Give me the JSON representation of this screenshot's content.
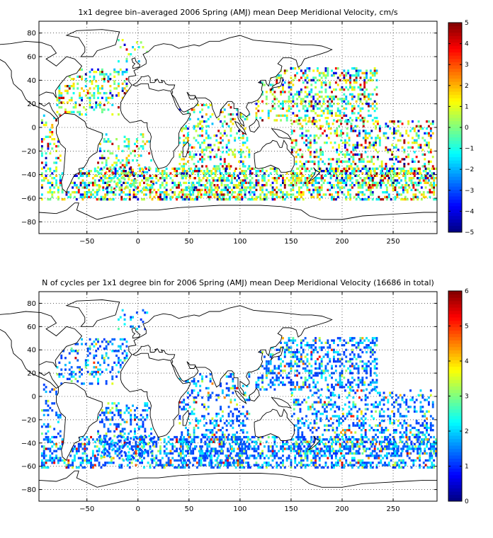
{
  "chart_data": [
    {
      "type": "heatmap",
      "title": "1x1 degree bin–averaged 2006 Spring (AMJ) mean Deep Meridional Velocity, cm/s",
      "xlabel": "",
      "ylabel": "",
      "xlim": [
        -97,
        293
      ],
      "ylim": [
        -90,
        90
      ],
      "x_ticks": [
        -50,
        0,
        50,
        100,
        150,
        200,
        250
      ],
      "x_tick_labels": [
        "−50",
        "0",
        "50",
        "100",
        "150",
        "200",
        "250"
      ],
      "y_ticks": [
        80,
        60,
        40,
        20,
        0,
        -20,
        -40,
        -60,
        -80
      ],
      "y_tick_labels": [
        "80",
        "60",
        "40",
        "20",
        "0",
        "−20",
        "−40",
        "−60",
        "−80"
      ],
      "grid": true,
      "colormap": "jet",
      "colorbar": {
        "range": [
          -5,
          5
        ],
        "ticks": [
          5,
          4,
          3,
          2,
          1,
          0,
          -1,
          -2,
          -3,
          -4,
          -5
        ],
        "tick_labels": [
          "5",
          "4",
          "3",
          "2",
          "1",
          "0",
          "−1",
          "−2",
          "−3",
          "−4",
          "−5"
        ]
      },
      "value_distribution": "diverging, mostly -2 to 2 with sparse extremes near ±5",
      "sampled_regions": [
        {
          "lon": [
            -80,
            -10
          ],
          "lat": [
            10,
            50
          ],
          "density": 0.3
        },
        {
          "lon": [
            -95,
            -75
          ],
          "lat": [
            -35,
            10
          ],
          "density": 0.25
        },
        {
          "lon": [
            -40,
            15
          ],
          "lat": [
            -55,
            -5
          ],
          "density": 0.28
        },
        {
          "lon": [
            40,
            110
          ],
          "lat": [
            -60,
            20
          ],
          "density": 0.3
        },
        {
          "lon": [
            115,
            235
          ],
          "lat": [
            5,
            50
          ],
          "density": 0.4
        },
        {
          "lon": [
            150,
            290
          ],
          "lat": [
            -50,
            5
          ],
          "density": 0.32
        },
        {
          "lon": [
            -95,
            293
          ],
          "lat": [
            -62,
            -35
          ],
          "density": 0.45
        },
        {
          "lon": [
            -20,
            10
          ],
          "lat": [
            55,
            75
          ],
          "density": 0.15
        }
      ]
    },
    {
      "type": "heatmap",
      "title": "N of cycles per 1x1 degree bin for 2006 Spring (AMJ) mean Deep Meridional Velocity (16686 in total)",
      "xlabel": "",
      "ylabel": "",
      "xlim": [
        -97,
        293
      ],
      "ylim": [
        -90,
        90
      ],
      "x_ticks": [
        -50,
        0,
        50,
        100,
        150,
        200,
        250
      ],
      "x_tick_labels": [
        "−50",
        "0",
        "50",
        "100",
        "150",
        "200",
        "250"
      ],
      "y_ticks": [
        80,
        60,
        40,
        20,
        0,
        -20,
        -40,
        -60,
        -80
      ],
      "y_tick_labels": [
        "80",
        "60",
        "40",
        "20",
        "0",
        "−20",
        "−40",
        "−60",
        "−80"
      ],
      "grid": true,
      "colormap": "jet",
      "colorbar": {
        "range": [
          0,
          6
        ],
        "ticks": [
          6,
          5,
          4,
          3,
          2,
          1,
          0
        ],
        "tick_labels": [
          "6",
          "5",
          "4",
          "3",
          "2",
          "1",
          "0"
        ]
      },
      "total_cycles": 16686,
      "value_distribution": "mostly 1-2 cycles per bin, few bins up to 6",
      "sampled_regions": [
        {
          "lon": [
            -80,
            -10
          ],
          "lat": [
            10,
            50
          ],
          "density": 0.3
        },
        {
          "lon": [
            -95,
            -75
          ],
          "lat": [
            -35,
            10
          ],
          "density": 0.25
        },
        {
          "lon": [
            -40,
            15
          ],
          "lat": [
            -55,
            -5
          ],
          "density": 0.28
        },
        {
          "lon": [
            40,
            110
          ],
          "lat": [
            -60,
            20
          ],
          "density": 0.3
        },
        {
          "lon": [
            115,
            235
          ],
          "lat": [
            5,
            50
          ],
          "density": 0.4
        },
        {
          "lon": [
            150,
            290
          ],
          "lat": [
            -50,
            5
          ],
          "density": 0.32
        },
        {
          "lon": [
            -95,
            293
          ],
          "lat": [
            -62,
            -35
          ],
          "density": 0.45
        },
        {
          "lon": [
            -20,
            10
          ],
          "lat": [
            55,
            75
          ],
          "density": 0.15
        }
      ]
    }
  ]
}
